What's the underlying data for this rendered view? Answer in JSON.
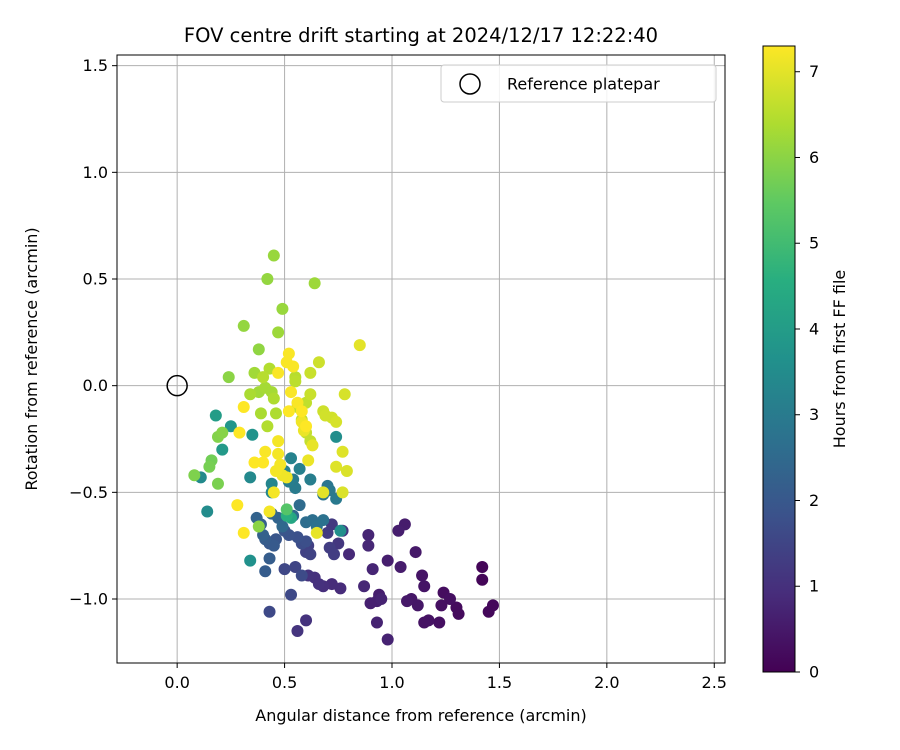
{
  "chart_data": {
    "type": "scatter",
    "title": "FOV centre drift starting at 2024/12/17 12:22:40",
    "xlabel": "Angular distance from reference (arcmin)",
    "ylabel": "Rotation from reference (arcmin)",
    "xlim": [
      -0.28,
      2.55
    ],
    "ylim": [
      -1.3,
      1.55
    ],
    "x_ticks": [
      0.0,
      0.5,
      1.0,
      1.5,
      2.0,
      2.5
    ],
    "x_tick_labels": [
      "0.0",
      "0.5",
      "1.0",
      "1.5",
      "2.0",
      "2.5"
    ],
    "y_ticks": [
      1.5,
      1.0,
      0.5,
      0.0,
      -0.5,
      -1.0
    ],
    "y_tick_labels": [
      "1.5",
      "1.0",
      "0.5",
      "0.0",
      "−0.5",
      "−1.0"
    ],
    "grid": true,
    "legend": {
      "placement": "top-right",
      "entries": [
        {
          "label": "Reference platepar",
          "marker": "open-circle"
        }
      ]
    },
    "reference_point": {
      "x": 0.0,
      "y": 0.0
    },
    "colorbar": {
      "label": "Hours from first FF file",
      "colormap": "viridis",
      "range": [
        0,
        7.3
      ],
      "ticks": [
        0,
        1,
        2,
        3,
        4,
        5,
        6,
        7
      ],
      "tick_labels": [
        "0",
        "1",
        "2",
        "3",
        "4",
        "5",
        "6",
        "7"
      ]
    },
    "series": [
      {
        "points": [
          [
            1.42,
            -0.85,
            0.1
          ],
          [
            1.42,
            -0.91,
            0.1
          ],
          [
            1.47,
            -1.03,
            0.15
          ],
          [
            1.45,
            -1.06,
            0.15
          ],
          [
            1.3,
            -1.04,
            0.2
          ],
          [
            1.31,
            -1.07,
            0.2
          ],
          [
            1.24,
            -0.97,
            0.25
          ],
          [
            1.27,
            -1.0,
            0.3
          ],
          [
            1.23,
            -1.03,
            0.3
          ],
          [
            1.22,
            -1.11,
            0.3
          ],
          [
            1.17,
            -1.1,
            0.35
          ],
          [
            1.15,
            -1.11,
            0.35
          ],
          [
            1.15,
            -0.94,
            0.4
          ],
          [
            1.14,
            -0.89,
            0.4
          ],
          [
            1.12,
            -1.03,
            0.45
          ],
          [
            1.09,
            -1.0,
            0.45
          ],
          [
            1.07,
            -1.01,
            0.5
          ],
          [
            1.11,
            -0.78,
            0.5
          ],
          [
            1.04,
            -0.85,
            0.55
          ],
          [
            1.06,
            -0.65,
            0.55
          ],
          [
            1.03,
            -0.68,
            0.6
          ],
          [
            0.98,
            -0.82,
            0.6
          ],
          [
            0.94,
            -0.98,
            0.6
          ],
          [
            0.93,
            -1.01,
            0.65
          ],
          [
            0.9,
            -1.02,
            0.65
          ],
          [
            0.95,
            -1.0,
            0.7
          ],
          [
            0.93,
            -1.11,
            0.7
          ],
          [
            0.98,
            -1.19,
            0.7
          ],
          [
            0.91,
            -0.86,
            0.75
          ],
          [
            0.89,
            -0.7,
            0.75
          ],
          [
            0.89,
            -0.75,
            0.8
          ],
          [
            0.87,
            -0.94,
            0.8
          ],
          [
            0.8,
            -0.79,
            0.85
          ],
          [
            0.76,
            -0.95,
            0.9
          ],
          [
            0.72,
            -0.93,
            0.9
          ],
          [
            0.68,
            -0.94,
            0.95
          ],
          [
            0.64,
            -0.9,
            1.0
          ],
          [
            0.66,
            -0.93,
            1.0
          ],
          [
            0.61,
            -0.89,
            1.05
          ],
          [
            0.6,
            -1.1,
            1.05
          ],
          [
            0.56,
            -1.15,
            1.1
          ],
          [
            0.77,
            -0.68,
            1.1
          ],
          [
            0.75,
            -0.74,
            1.15
          ],
          [
            0.72,
            -0.65,
            1.2
          ],
          [
            0.7,
            -0.69,
            1.25
          ],
          [
            0.71,
            -0.76,
            1.3
          ],
          [
            0.73,
            -0.79,
            1.3
          ],
          [
            0.61,
            -0.75,
            1.35
          ],
          [
            0.6,
            -0.78,
            1.4
          ],
          [
            0.62,
            -0.79,
            1.45
          ],
          [
            0.55,
            -0.85,
            1.5
          ],
          [
            0.5,
            -0.86,
            1.55
          ],
          [
            0.53,
            -0.98,
            1.6
          ],
          [
            0.43,
            -1.06,
            1.6
          ],
          [
            0.58,
            -0.89,
            1.65
          ],
          [
            0.58,
            -0.74,
            1.7
          ],
          [
            0.6,
            -0.73,
            1.75
          ],
          [
            0.56,
            -0.71,
            1.8
          ],
          [
            0.52,
            -0.7,
            1.85
          ],
          [
            0.5,
            -0.68,
            1.9
          ],
          [
            0.46,
            -0.72,
            1.95
          ],
          [
            0.43,
            -0.74,
            2.0
          ],
          [
            0.45,
            -0.75,
            2.05
          ],
          [
            0.41,
            -0.72,
            2.1
          ],
          [
            0.41,
            -0.87,
            2.1
          ],
          [
            0.43,
            -0.81,
            2.15
          ],
          [
            0.39,
            -0.65,
            2.2
          ],
          [
            0.4,
            -0.7,
            2.25
          ],
          [
            0.37,
            -0.62,
            2.3
          ],
          [
            0.47,
            -0.62,
            2.35
          ],
          [
            0.44,
            -0.6,
            2.4
          ],
          [
            0.49,
            -0.66,
            2.45
          ],
          [
            0.54,
            -0.61,
            2.5
          ],
          [
            0.57,
            -0.56,
            2.55
          ],
          [
            0.6,
            -0.64,
            2.6
          ],
          [
            0.63,
            -0.63,
            2.65
          ],
          [
            0.65,
            -0.66,
            2.7
          ],
          [
            0.68,
            -0.63,
            2.75
          ],
          [
            0.68,
            -0.51,
            2.8
          ],
          [
            0.7,
            -0.47,
            2.85
          ],
          [
            0.71,
            -0.49,
            2.9
          ],
          [
            0.74,
            -0.53,
            2.95
          ],
          [
            0.54,
            -0.44,
            3.0
          ],
          [
            0.55,
            -0.48,
            3.0
          ],
          [
            0.52,
            -0.45,
            3.05
          ],
          [
            0.62,
            -0.44,
            3.1
          ],
          [
            0.57,
            -0.39,
            3.15
          ],
          [
            0.53,
            -0.34,
            3.2
          ],
          [
            0.5,
            -0.4,
            3.25
          ],
          [
            0.44,
            -0.46,
            3.3
          ],
          [
            0.44,
            -0.5,
            3.35
          ],
          [
            0.34,
            -0.43,
            3.4
          ],
          [
            0.11,
            -0.43,
            3.45
          ],
          [
            0.14,
            -0.59,
            3.5
          ],
          [
            0.74,
            -0.24,
            3.55
          ],
          [
            0.76,
            -0.68,
            3.6
          ],
          [
            0.34,
            -0.82,
            3.65
          ],
          [
            0.35,
            -0.23,
            3.7
          ],
          [
            0.25,
            -0.19,
            3.8
          ],
          [
            0.21,
            -0.3,
            3.9
          ],
          [
            0.18,
            -0.14,
            4.0
          ],
          [
            0.53,
            -0.62,
            4.3
          ],
          [
            0.51,
            -0.61,
            4.6
          ],
          [
            0.51,
            -0.58,
            5.3
          ],
          [
            0.16,
            -0.35,
            5.7
          ],
          [
            0.15,
            -0.38,
            5.75
          ],
          [
            0.19,
            -0.46,
            5.8
          ],
          [
            0.08,
            -0.42,
            5.85
          ],
          [
            0.19,
            -0.24,
            5.9
          ],
          [
            0.21,
            -0.22,
            5.95
          ],
          [
            0.24,
            0.04,
            6.0
          ],
          [
            0.38,
            -0.66,
            6.0
          ],
          [
            0.38,
            0.17,
            6.05
          ],
          [
            0.31,
            0.28,
            6.1
          ],
          [
            0.42,
            0.5,
            6.1
          ],
          [
            0.45,
            0.61,
            6.15
          ],
          [
            0.49,
            0.36,
            6.15
          ],
          [
            0.64,
            0.48,
            6.2
          ],
          [
            0.47,
            0.25,
            6.2
          ],
          [
            0.36,
            0.06,
            6.25
          ],
          [
            0.38,
            -0.03,
            6.25
          ],
          [
            0.41,
            -0.01,
            6.3
          ],
          [
            0.44,
            -0.03,
            6.3
          ],
          [
            0.34,
            -0.04,
            6.35
          ],
          [
            0.39,
            -0.13,
            6.35
          ],
          [
            0.46,
            -0.13,
            6.4
          ],
          [
            0.45,
            -0.06,
            6.4
          ],
          [
            0.42,
            -0.19,
            6.45
          ],
          [
            0.43,
            0.08,
            6.45
          ],
          [
            0.4,
            0.04,
            6.5
          ],
          [
            0.55,
            0.04,
            6.5
          ],
          [
            0.55,
            0.02,
            6.55
          ],
          [
            0.56,
            -0.1,
            6.55
          ],
          [
            0.6,
            -0.08,
            6.6
          ],
          [
            0.58,
            -0.16,
            6.6
          ],
          [
            0.6,
            -0.22,
            6.65
          ],
          [
            0.62,
            -0.26,
            6.65
          ],
          [
            0.62,
            -0.04,
            6.7
          ],
          [
            0.62,
            0.06,
            6.7
          ],
          [
            0.66,
            0.11,
            6.75
          ],
          [
            0.68,
            -0.12,
            6.75
          ],
          [
            0.69,
            -0.14,
            6.8
          ],
          [
            0.72,
            -0.15,
            6.8
          ],
          [
            0.74,
            -0.17,
            6.85
          ],
          [
            0.78,
            -0.04,
            6.85
          ],
          [
            0.79,
            -0.4,
            6.9
          ],
          [
            0.77,
            -0.5,
            6.9
          ],
          [
            0.77,
            -0.31,
            6.95
          ],
          [
            0.74,
            -0.38,
            6.95
          ],
          [
            0.85,
            0.19,
            7.0
          ],
          [
            0.68,
            -0.5,
            7.0
          ],
          [
            0.65,
            -0.69,
            7.05
          ],
          [
            0.63,
            -0.28,
            7.05
          ],
          [
            0.61,
            -0.35,
            7.1
          ],
          [
            0.59,
            -0.21,
            7.1
          ],
          [
            0.58,
            -0.17,
            7.15
          ],
          [
            0.51,
            -0.43,
            7.15
          ],
          [
            0.49,
            -0.42,
            7.15
          ],
          [
            0.48,
            -0.37,
            7.2
          ],
          [
            0.47,
            -0.32,
            7.2
          ],
          [
            0.47,
            -0.26,
            7.2
          ],
          [
            0.46,
            -0.4,
            7.2
          ],
          [
            0.45,
            -0.5,
            7.2
          ],
          [
            0.43,
            -0.59,
            7.2
          ],
          [
            0.41,
            -0.31,
            7.25
          ],
          [
            0.47,
            0.06,
            7.25
          ],
          [
            0.51,
            0.11,
            7.25
          ],
          [
            0.52,
            0.15,
            7.25
          ],
          [
            0.54,
            0.09,
            7.25
          ],
          [
            0.56,
            -0.08,
            7.25
          ],
          [
            0.53,
            -0.03,
            7.25
          ],
          [
            0.31,
            -0.1,
            7.3
          ],
          [
            0.29,
            -0.22,
            7.3
          ],
          [
            0.28,
            -0.56,
            7.3
          ],
          [
            0.31,
            -0.69,
            7.3
          ],
          [
            0.36,
            -0.36,
            7.3
          ],
          [
            0.4,
            -0.36,
            7.3
          ],
          [
            0.52,
            -0.12,
            7.3
          ],
          [
            0.58,
            -0.12,
            7.3
          ],
          [
            0.6,
            -0.19,
            7.3
          ]
        ]
      }
    ]
  }
}
